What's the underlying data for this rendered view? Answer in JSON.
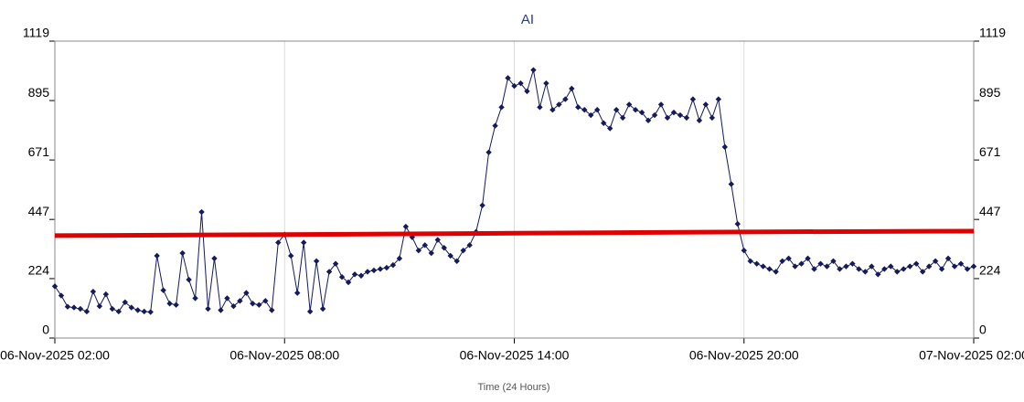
{
  "chart_data": {
    "type": "line",
    "title": "AI",
    "x_label": "Time (24 Hours)",
    "x": [
      "06-Nov-2025 02:00",
      "06-Nov-2025 02:10",
      "06-Nov-2025 02:20",
      "06-Nov-2025 02:30",
      "06-Nov-2025 02:40",
      "06-Nov-2025 02:50",
      "06-Nov-2025 03:00",
      "06-Nov-2025 03:10",
      "06-Nov-2025 03:20",
      "06-Nov-2025 03:30",
      "06-Nov-2025 03:40",
      "06-Nov-2025 03:50",
      "06-Nov-2025 04:00",
      "06-Nov-2025 04:10",
      "06-Nov-2025 04:20",
      "06-Nov-2025 04:30",
      "06-Nov-2025 04:40",
      "06-Nov-2025 04:50",
      "06-Nov-2025 05:00",
      "06-Nov-2025 05:10",
      "06-Nov-2025 05:20",
      "06-Nov-2025 05:30",
      "06-Nov-2025 05:40",
      "06-Nov-2025 05:50",
      "06-Nov-2025 06:00",
      "06-Nov-2025 06:10",
      "06-Nov-2025 06:20",
      "06-Nov-2025 06:30",
      "06-Nov-2025 06:40",
      "06-Nov-2025 06:50",
      "06-Nov-2025 07:00",
      "06-Nov-2025 07:10",
      "06-Nov-2025 07:20",
      "06-Nov-2025 07:30",
      "06-Nov-2025 07:40",
      "06-Nov-2025 07:50",
      "06-Nov-2025 08:00",
      "06-Nov-2025 08:10",
      "06-Nov-2025 08:20",
      "06-Nov-2025 08:30",
      "06-Nov-2025 08:40",
      "06-Nov-2025 08:50",
      "06-Nov-2025 09:00",
      "06-Nov-2025 09:10",
      "06-Nov-2025 09:20",
      "06-Nov-2025 09:30",
      "06-Nov-2025 09:40",
      "06-Nov-2025 09:50",
      "06-Nov-2025 10:00",
      "06-Nov-2025 10:10",
      "06-Nov-2025 10:20",
      "06-Nov-2025 10:30",
      "06-Nov-2025 10:40",
      "06-Nov-2025 10:50",
      "06-Nov-2025 11:00",
      "06-Nov-2025 11:10",
      "06-Nov-2025 11:20",
      "06-Nov-2025 11:30",
      "06-Nov-2025 11:40",
      "06-Nov-2025 11:50",
      "06-Nov-2025 12:00",
      "06-Nov-2025 12:10",
      "06-Nov-2025 12:20",
      "06-Nov-2025 12:30",
      "06-Nov-2025 12:40",
      "06-Nov-2025 12:50",
      "06-Nov-2025 13:00",
      "06-Nov-2025 13:10",
      "06-Nov-2025 13:20",
      "06-Nov-2025 13:30",
      "06-Nov-2025 13:40",
      "06-Nov-2025 13:50",
      "06-Nov-2025 14:00",
      "06-Nov-2025 14:10",
      "06-Nov-2025 14:20",
      "06-Nov-2025 14:30",
      "06-Nov-2025 14:40",
      "06-Nov-2025 14:50",
      "06-Nov-2025 15:00",
      "06-Nov-2025 15:10",
      "06-Nov-2025 15:20",
      "06-Nov-2025 15:30",
      "06-Nov-2025 15:40",
      "06-Nov-2025 15:50",
      "06-Nov-2025 16:00",
      "06-Nov-2025 16:10",
      "06-Nov-2025 16:20",
      "06-Nov-2025 16:30",
      "06-Nov-2025 16:40",
      "06-Nov-2025 16:50",
      "06-Nov-2025 17:00",
      "06-Nov-2025 17:10",
      "06-Nov-2025 17:20",
      "06-Nov-2025 17:30",
      "06-Nov-2025 17:40",
      "06-Nov-2025 17:50",
      "06-Nov-2025 18:00",
      "06-Nov-2025 18:10",
      "06-Nov-2025 18:20",
      "06-Nov-2025 18:30",
      "06-Nov-2025 18:40",
      "06-Nov-2025 18:50",
      "06-Nov-2025 19:00",
      "06-Nov-2025 19:10",
      "06-Nov-2025 19:20",
      "06-Nov-2025 19:30",
      "06-Nov-2025 19:40",
      "06-Nov-2025 19:50",
      "06-Nov-2025 20:00",
      "06-Nov-2025 20:10",
      "06-Nov-2025 20:20",
      "06-Nov-2025 20:30",
      "06-Nov-2025 20:40",
      "06-Nov-2025 20:50",
      "06-Nov-2025 21:00",
      "06-Nov-2025 21:10",
      "06-Nov-2025 21:20",
      "06-Nov-2025 21:30",
      "06-Nov-2025 21:40",
      "06-Nov-2025 21:50",
      "06-Nov-2025 22:00",
      "06-Nov-2025 22:10",
      "06-Nov-2025 22:20",
      "06-Nov-2025 22:30",
      "06-Nov-2025 22:40",
      "06-Nov-2025 22:50",
      "06-Nov-2025 23:00",
      "06-Nov-2025 23:10",
      "06-Nov-2025 23:20",
      "06-Nov-2025 23:30",
      "06-Nov-2025 23:40",
      "06-Nov-2025 23:50",
      "07-Nov-2025 00:00",
      "07-Nov-2025 00:10",
      "07-Nov-2025 00:20",
      "07-Nov-2025 00:30",
      "07-Nov-2025 00:40",
      "07-Nov-2025 00:50",
      "07-Nov-2025 01:00",
      "07-Nov-2025 01:10",
      "07-Nov-2025 01:20",
      "07-Nov-2025 01:30",
      "07-Nov-2025 01:40",
      "07-Nov-2025 01:50",
      "07-Nov-2025 02:00"
    ],
    "series": [
      {
        "color": "#141a5a",
        "values": [
          195,
          160,
          118,
          115,
          110,
          100,
          175,
          120,
          165,
          110,
          100,
          135,
          115,
          105,
          100,
          98,
          310,
          180,
          130,
          125,
          320,
          220,
          150,
          475,
          110,
          300,
          105,
          150,
          120,
          140,
          170,
          130,
          125,
          140,
          105,
          360,
          390,
          310,
          170,
          360,
          100,
          290,
          110,
          250,
          280,
          230,
          210,
          240,
          235,
          250,
          255,
          260,
          265,
          275,
          300,
          420,
          380,
          330,
          350,
          320,
          370,
          340,
          310,
          290,
          330,
          350,
          400,
          500,
          700,
          800,
          870,
          980,
          950,
          960,
          930,
          1010,
          870,
          960,
          860,
          880,
          900,
          940,
          870,
          860,
          840,
          860,
          810,
          790,
          860,
          830,
          880,
          860,
          850,
          820,
          840,
          880,
          830,
          850,
          840,
          830,
          900,
          820,
          880,
          830,
          900,
          720,
          580,
          430,
          330,
          290,
          280,
          270,
          260,
          250,
          290,
          300,
          270,
          280,
          300,
          260,
          280,
          270,
          290,
          260,
          270,
          280,
          260,
          250,
          270,
          240,
          260,
          270,
          250,
          260,
          270,
          280,
          250,
          270,
          290,
          260,
          300,
          270,
          280,
          260,
          270
        ]
      }
    ],
    "threshold": {
      "color": "#e00000",
      "x": [
        "06-Nov-2025 02:00",
        "06-Nov-2025 08:00",
        "06-Nov-2025 14:00",
        "06-Nov-2025 20:00",
        "07-Nov-2025 02:00"
      ],
      "values": [
        386,
        390,
        395,
        400,
        403
      ]
    },
    "xlim": [
      "06-Nov-2025 02:00",
      "07-Nov-2025 02:00"
    ],
    "xticks": [
      "06-Nov-2025 02:00",
      "06-Nov-2025 08:00",
      "06-Nov-2025 14:00",
      "06-Nov-2025 20:00",
      "07-Nov-2025 02:00"
    ],
    "ylim": [
      0,
      1119
    ],
    "yticks": [
      0,
      224,
      447,
      671,
      895,
      1119
    ],
    "y2lim": [
      0,
      1119
    ],
    "y2ticks": [
      0,
      224,
      447,
      671,
      895,
      1119
    ],
    "grid": true
  }
}
